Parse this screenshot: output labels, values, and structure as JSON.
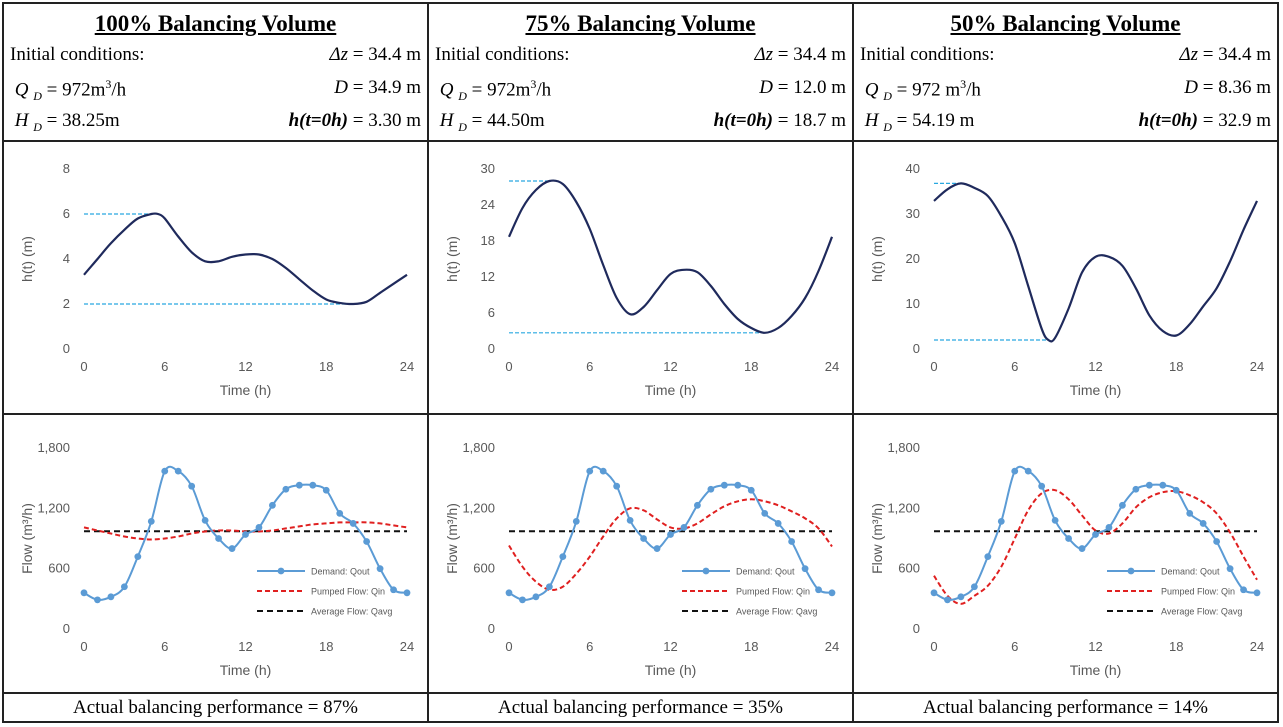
{
  "panels": [
    {
      "title": "100% Balancing Volume",
      "init_label": "Initial conditions:",
      "dz_value": "= 34.4 m",
      "qd_value": "= 972m",
      "qd_unit": "/h",
      "d_value": "= 34.9 m",
      "hd_value": "= 38.25m",
      "h0_value": "= 3.30 m",
      "performance": "Actual balancing performance = 87%"
    },
    {
      "title": "75% Balancing Volume",
      "init_label": "Initial conditions:",
      "dz_value": "= 34.4 m",
      "qd_value": "= 972m",
      "qd_unit": "/h",
      "d_value": "= 12.0 m",
      "hd_value": "= 44.50m",
      "h0_value": "= 18.7 m",
      "performance": "Actual balancing performance = 35%"
    },
    {
      "title": "50% Balancing Volume",
      "init_label": "Initial conditions:",
      "dz_value": "= 34.4 m",
      "qd_value": "= 972 m",
      "qd_unit": "/h",
      "d_value": "= 8.36 m",
      "hd_value": "= 54.19 m",
      "h0_value": "= 32.9 m",
      "performance": "Actual balancing performance = 14%"
    }
  ],
  "symbols": {
    "dz": "Δz",
    "q": "Q",
    "d_sub": "D",
    "d": "D",
    "h": "H",
    "h0": "h(t=0h)",
    "cube": "3"
  },
  "colors": {
    "level": "#1f2a5c",
    "limit": "#29a8e0",
    "demand": "#5b9bd5",
    "pumped": "#e02020",
    "average": "#111111"
  },
  "chart_data": [
    {
      "type": "line",
      "panel": 0,
      "xlabel": "Time (h)",
      "ylabel": "h(t) (m)",
      "xlim": [
        0,
        24
      ],
      "ylim": [
        0,
        8
      ],
      "xticks": [
        "0",
        "6",
        "12",
        "18",
        "24"
      ],
      "yticks": [
        "0",
        "2",
        "4",
        "6",
        "8"
      ],
      "series": [
        {
          "x": [
            0,
            1,
            2,
            3,
            4,
            5,
            5.5,
            6,
            7,
            8,
            9,
            10,
            11,
            12,
            13,
            14,
            15,
            16,
            17,
            18,
            19,
            20,
            21,
            22,
            23,
            24
          ],
          "values": [
            3.3,
            4.0,
            4.7,
            5.3,
            5.8,
            6.0,
            6.0,
            5.8,
            5.0,
            4.3,
            3.9,
            3.9,
            4.1,
            4.2,
            4.2,
            4.0,
            3.6,
            3.1,
            2.6,
            2.2,
            2.05,
            2.0,
            2.1,
            2.5,
            2.9,
            3.3
          ]
        }
      ],
      "max_line": 6.0,
      "min_line": 2.0
    },
    {
      "type": "line",
      "panel": 1,
      "xlabel": "Time (h)",
      "ylabel": "h(t) (m)",
      "xlim": [
        0,
        24
      ],
      "ylim": [
        0,
        30
      ],
      "xticks": [
        "0",
        "6",
        "12",
        "18",
        "24"
      ],
      "yticks": [
        "0",
        "6",
        "12",
        "18",
        "24",
        "30"
      ],
      "series": [
        {
          "x": [
            0,
            1,
            2,
            3,
            4,
            5,
            6,
            7,
            8,
            9,
            10,
            11,
            12,
            13,
            14,
            15,
            16,
            17,
            18,
            19,
            20,
            21,
            22,
            23,
            24
          ],
          "values": [
            18.7,
            23.5,
            26.5,
            28.0,
            27.5,
            24.5,
            20.0,
            14.0,
            8.5,
            5.8,
            7.0,
            9.8,
            12.5,
            13.2,
            12.8,
            10.5,
            7.5,
            5.0,
            3.5,
            2.7,
            3.5,
            5.5,
            8.5,
            13.0,
            18.7
          ]
        }
      ],
      "max_line": 28.0,
      "min_line": 2.7
    },
    {
      "type": "line",
      "panel": 2,
      "xlabel": "Time (h)",
      "ylabel": "h(t) (m)",
      "xlim": [
        0,
        24
      ],
      "ylim": [
        0,
        40
      ],
      "xticks": [
        "0",
        "6",
        "12",
        "18",
        "24"
      ],
      "yticks": [
        "0",
        "10",
        "20",
        "30",
        "40"
      ],
      "series": [
        {
          "x": [
            0,
            1,
            2,
            3,
            4,
            5,
            6,
            7,
            8,
            8.5,
            9,
            10,
            11,
            12,
            13,
            14,
            15,
            16,
            17,
            18,
            19,
            20,
            21,
            22,
            23,
            24
          ],
          "values": [
            32.9,
            35.5,
            36.8,
            35.8,
            34.0,
            29.5,
            23.5,
            14.0,
            4.5,
            2.0,
            2.5,
            9.0,
            17.0,
            20.5,
            20.5,
            18.5,
            13.5,
            7.5,
            4.0,
            3.0,
            5.5,
            9.5,
            13.5,
            19.5,
            26.5,
            32.9
          ]
        }
      ],
      "max_line": 36.8,
      "min_line": 2.0
    },
    {
      "type": "line",
      "panel": 0,
      "xlabel": "Time (h)",
      "ylabel": "Flow (m³/h)",
      "xlim": [
        0,
        24
      ],
      "ylim": [
        0,
        1800
      ],
      "xticks": [
        "0",
        "6",
        "12",
        "18",
        "24"
      ],
      "yticks": [
        "0",
        "600",
        "1,200",
        "1,800"
      ],
      "x": [
        0,
        1,
        2,
        3,
        4,
        5,
        6,
        7,
        8,
        9,
        10,
        11,
        12,
        13,
        14,
        15,
        16,
        17,
        18,
        19,
        20,
        21,
        22,
        23,
        24
      ],
      "series": [
        {
          "name": "Demand: Qout",
          "values": [
            360,
            290,
            320,
            420,
            720,
            1070,
            1570,
            1570,
            1420,
            1080,
            900,
            800,
            940,
            1010,
            1230,
            1390,
            1430,
            1430,
            1380,
            1150,
            1050,
            870,
            600,
            390,
            360
          ]
        },
        {
          "name": "Pumped Flow: Qin",
          "values": [
            1010,
            980,
            950,
            920,
            900,
            890,
            900,
            920,
            950,
            970,
            980,
            980,
            970,
            970,
            980,
            1000,
            1020,
            1040,
            1050,
            1060,
            1060,
            1060,
            1050,
            1030,
            1010
          ]
        },
        {
          "name": "Average Flow: Qavg",
          "values": [
            972,
            972,
            972,
            972,
            972,
            972,
            972,
            972,
            972,
            972,
            972,
            972,
            972,
            972,
            972,
            972,
            972,
            972,
            972,
            972,
            972,
            972,
            972,
            972,
            972
          ]
        }
      ]
    },
    {
      "type": "line",
      "panel": 1,
      "xlabel": "Time (h)",
      "ylabel": "Flow (m³/h)",
      "xlim": [
        0,
        24
      ],
      "ylim": [
        0,
        1800
      ],
      "xticks": [
        "0",
        "6",
        "12",
        "18",
        "24"
      ],
      "yticks": [
        "0",
        "600",
        "1,200",
        "1,800"
      ],
      "x": [
        0,
        1,
        2,
        3,
        4,
        5,
        6,
        7,
        8,
        9,
        10,
        11,
        12,
        13,
        14,
        15,
        16,
        17,
        18,
        19,
        20,
        21,
        22,
        23,
        24
      ],
      "series": [
        {
          "name": "Demand: Qout",
          "values": [
            360,
            290,
            320,
            420,
            720,
            1070,
            1570,
            1570,
            1420,
            1080,
            900,
            800,
            940,
            1010,
            1230,
            1390,
            1430,
            1430,
            1380,
            1150,
            1050,
            870,
            600,
            390,
            360
          ]
        },
        {
          "name": "Pumped Flow: Qin",
          "values": [
            830,
            620,
            470,
            390,
            420,
            550,
            720,
            920,
            1100,
            1200,
            1180,
            1090,
            1010,
            1000,
            1050,
            1140,
            1220,
            1270,
            1290,
            1270,
            1230,
            1170,
            1100,
            1000,
            820
          ]
        },
        {
          "name": "Average Flow: Qavg",
          "values": [
            972,
            972,
            972,
            972,
            972,
            972,
            972,
            972,
            972,
            972,
            972,
            972,
            972,
            972,
            972,
            972,
            972,
            972,
            972,
            972,
            972,
            972,
            972,
            972,
            972
          ]
        }
      ]
    },
    {
      "type": "line",
      "panel": 2,
      "xlabel": "Time (h)",
      "ylabel": "Flow (m³/h)",
      "xlim": [
        0,
        24
      ],
      "ylim": [
        0,
        1800
      ],
      "xticks": [
        "0",
        "6",
        "12",
        "18",
        "24"
      ],
      "yticks": [
        "0",
        "600",
        "1,200",
        "1,800"
      ],
      "x": [
        0,
        1,
        2,
        3,
        4,
        5,
        6,
        7,
        8,
        9,
        10,
        11,
        12,
        13,
        14,
        15,
        16,
        17,
        18,
        19,
        20,
        21,
        22,
        23,
        24
      ],
      "series": [
        {
          "name": "Demand: Qout",
          "values": [
            360,
            290,
            320,
            420,
            720,
            1070,
            1570,
            1570,
            1420,
            1080,
            900,
            800,
            940,
            1010,
            1230,
            1390,
            1430,
            1430,
            1380,
            1150,
            1050,
            870,
            600,
            390,
            360
          ]
        },
        {
          "name": "Pumped Flow: Qin",
          "values": [
            530,
            330,
            250,
            330,
            430,
            620,
            900,
            1180,
            1350,
            1380,
            1290,
            1130,
            980,
            950,
            1050,
            1210,
            1310,
            1360,
            1370,
            1330,
            1260,
            1150,
            960,
            720,
            490
          ]
        },
        {
          "name": "Average Flow: Qavg",
          "values": [
            972,
            972,
            972,
            972,
            972,
            972,
            972,
            972,
            972,
            972,
            972,
            972,
            972,
            972,
            972,
            972,
            972,
            972,
            972,
            972,
            972,
            972,
            972,
            972,
            972
          ]
        }
      ]
    }
  ]
}
